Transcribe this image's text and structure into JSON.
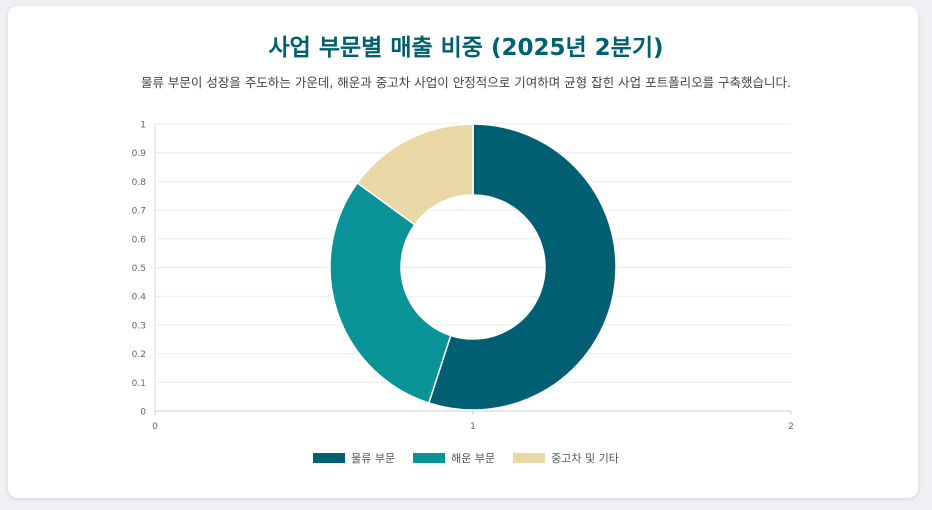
{
  "title": "사업 부문별 매출 비중 (2025년 2분기)",
  "subtitle": "물류 부문이 성장을 주도하는 가운데, 해운과 중고차 사업이 안정적으로 기여하며 균형 잡힌 사업 포트폴리오를 구축했습니다.",
  "chart_data": {
    "type": "pie",
    "style": "doughnut",
    "categories": [
      "물류 부문",
      "해운 부문",
      "중고차 및 기타"
    ],
    "values": [
      55,
      30,
      15
    ],
    "colors": [
      "#005f73",
      "#0a9396",
      "#e9d8a6"
    ],
    "xlim": [
      0,
      2
    ],
    "ylim": [
      0,
      1
    ],
    "x_ticks": [
      "0",
      "1",
      "2"
    ],
    "y_ticks": [
      "0",
      "0.1",
      "0.2",
      "0.3",
      "0.4",
      "0.5",
      "0.6",
      "0.7",
      "0.8",
      "0.9",
      "1"
    ],
    "grid": true,
    "legend": "bottom"
  }
}
